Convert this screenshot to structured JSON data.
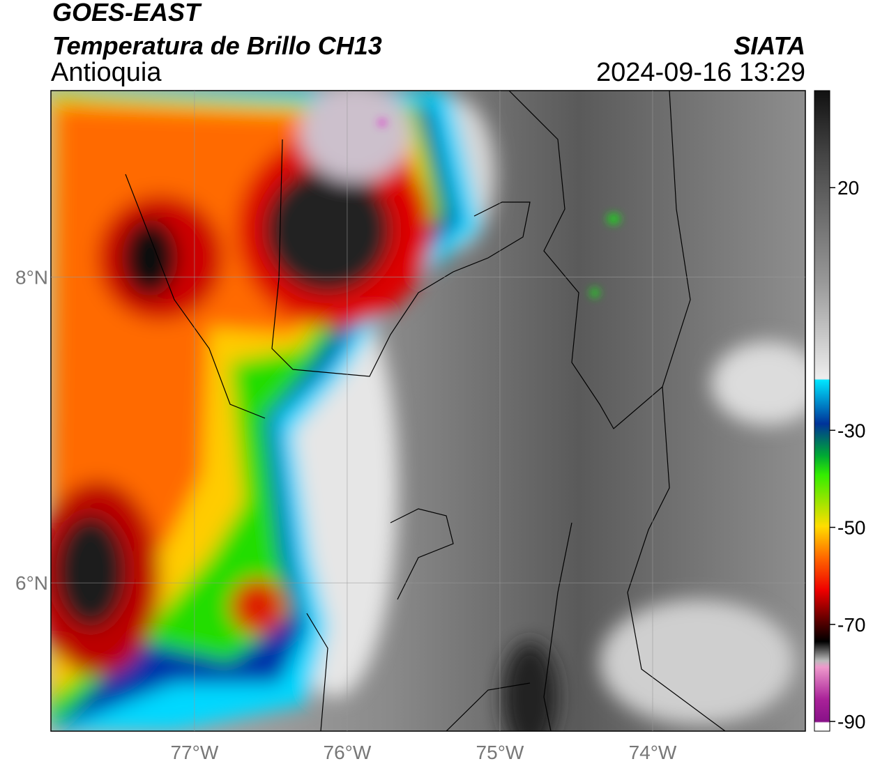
{
  "chart_data": {
    "type": "map",
    "title": "GOES-EAST",
    "subtitle": "Temperatura de Brillo CH13",
    "region": "Antioquia",
    "source": "SIATA",
    "datetime": "2024-09-16 13:29",
    "xlim": [
      -77.94,
      -73.0
    ],
    "ylim": [
      5.03,
      9.22
    ],
    "xticks": [
      {
        "value": -77,
        "label": "77°W"
      },
      {
        "value": -76,
        "label": "76°W"
      },
      {
        "value": -75,
        "label": "75°W"
      },
      {
        "value": -74,
        "label": "74°W"
      }
    ],
    "yticks": [
      {
        "value": 8,
        "label": "8°N"
      },
      {
        "value": 6,
        "label": "6°N"
      }
    ],
    "grid": true,
    "colorbar": {
      "lim": [
        -92,
        40
      ],
      "ticks": [
        20,
        -30,
        -50,
        -70,
        -90
      ]
    }
  }
}
